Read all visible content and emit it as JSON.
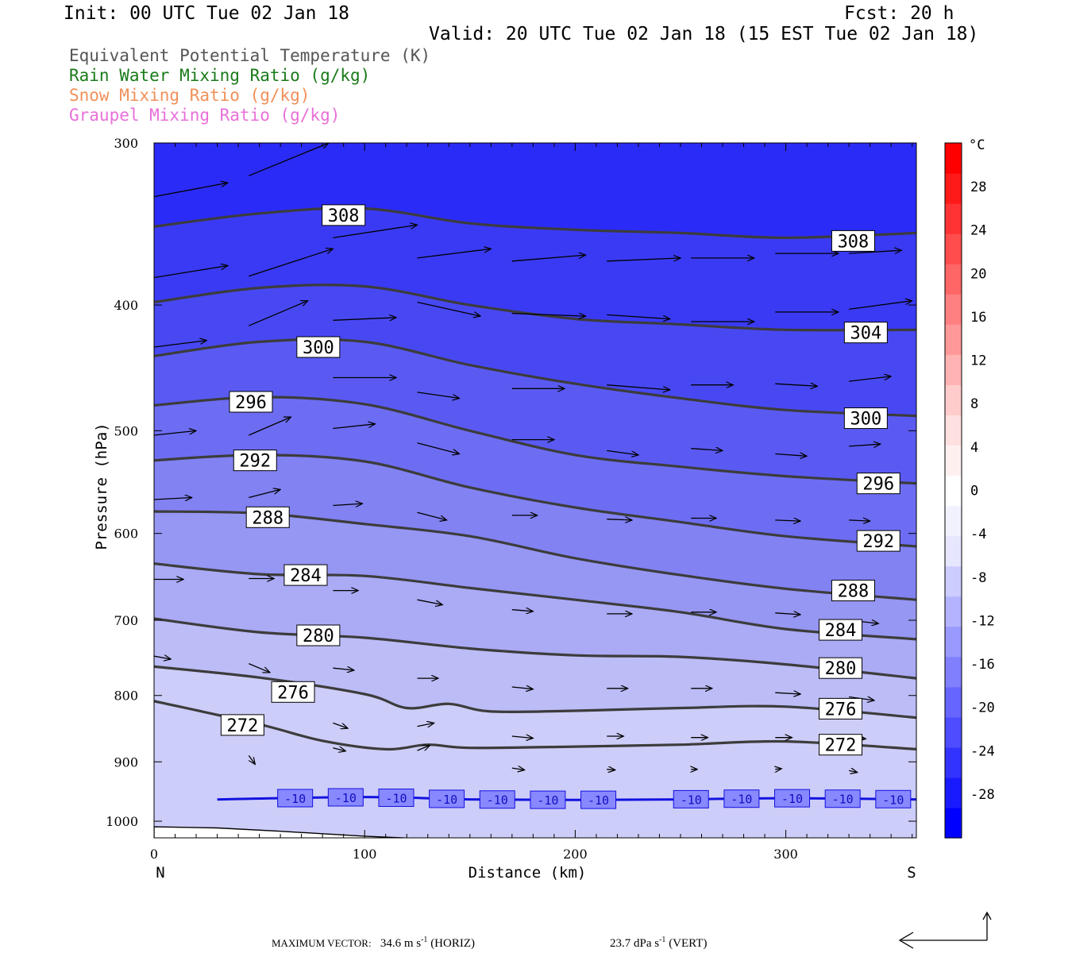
{
  "header": {
    "init": "Init: 00 UTC Tue 02 Jan 18",
    "fcst": "Fcst:  20 h",
    "valid": "Valid: 20 UTC Tue 02 Jan 18 (15 EST Tue 02 Jan 18)"
  },
  "legend": [
    {
      "label": "Equivalent Potential Temperature (K)",
      "color": "#555555"
    },
    {
      "label": "Rain Water Mixing Ratio (g/kg)",
      "color": "#1a7a1a"
    },
    {
      "label": "Snow Mixing Ratio (g/kg)",
      "color": "#f0905a"
    },
    {
      "label": "Graupel Mixing Ratio (g/kg)",
      "color": "#e870d8"
    }
  ],
  "chart_data": {
    "type": "cross-section",
    "xlabel": "Distance (km)",
    "ylabel": "Pressure (hPa)",
    "xlim": [
      0,
      362
    ],
    "ylim": [
      1030,
      300
    ],
    "y_scale": "log-pressure",
    "x_ticks": [
      0,
      100,
      200,
      300
    ],
    "y_ticks": [
      300,
      400,
      500,
      600,
      700,
      800,
      900,
      1000
    ],
    "end_labels": {
      "left": "N",
      "right": "S"
    },
    "theta_e_contours": [
      {
        "level": 308,
        "points": [
          [
            0,
            348
          ],
          [
            50,
            340
          ],
          [
            100,
            337
          ],
          [
            150,
            346
          ],
          [
            200,
            350
          ],
          [
            250,
            352
          ],
          [
            300,
            355
          ],
          [
            362,
            352
          ]
        ],
        "labels": [
          [
            90,
            341
          ],
          [
            332,
            357
          ]
        ]
      },
      {
        "level": 304,
        "points": [
          [
            0,
            398
          ],
          [
            50,
            388
          ],
          [
            100,
            387
          ],
          [
            150,
            400
          ],
          [
            200,
            410
          ],
          [
            250,
            414
          ],
          [
            300,
            418
          ],
          [
            362,
            418
          ]
        ],
        "labels": [
          [
            338,
            420
          ]
        ]
      },
      {
        "level": 300,
        "points": [
          [
            0,
            438
          ],
          [
            50,
            427
          ],
          [
            100,
            427
          ],
          [
            150,
            445
          ],
          [
            200,
            460
          ],
          [
            250,
            472
          ],
          [
            300,
            482
          ],
          [
            362,
            487
          ]
        ],
        "labels": [
          [
            78,
            431
          ],
          [
            338,
            489
          ]
        ]
      },
      {
        "level": 296,
        "points": [
          [
            0,
            478
          ],
          [
            50,
            471
          ],
          [
            100,
            477
          ],
          [
            150,
            500
          ],
          [
            200,
            522
          ],
          [
            250,
            533
          ],
          [
            300,
            542
          ],
          [
            362,
            549
          ]
        ],
        "labels": [
          [
            46,
            475
          ],
          [
            344,
            549
          ]
        ]
      },
      {
        "level": 292,
        "points": [
          [
            0,
            527
          ],
          [
            50,
            522
          ],
          [
            100,
            528
          ],
          [
            150,
            553
          ],
          [
            200,
            573
          ],
          [
            250,
            588
          ],
          [
            300,
            603
          ],
          [
            362,
            614
          ]
        ],
        "labels": [
          [
            48,
            527
          ],
          [
            344,
            608
          ]
        ]
      },
      {
        "level": 288,
        "points": [
          [
            0,
            577
          ],
          [
            50,
            579
          ],
          [
            100,
            590
          ],
          [
            150,
            603
          ],
          [
            200,
            627
          ],
          [
            250,
            646
          ],
          [
            300,
            662
          ],
          [
            362,
            675
          ]
        ],
        "labels": [
          [
            54,
            583
          ],
          [
            332,
            664
          ]
        ]
      },
      {
        "level": 284,
        "points": [
          [
            0,
            633
          ],
          [
            50,
            645
          ],
          [
            100,
            647
          ],
          [
            150,
            661
          ],
          [
            200,
            675
          ],
          [
            250,
            690
          ],
          [
            300,
            711
          ],
          [
            362,
            724
          ]
        ],
        "labels": [
          [
            72,
            646
          ],
          [
            326,
            712
          ]
        ]
      },
      {
        "level": 280,
        "points": [
          [
            0,
            698
          ],
          [
            50,
            715
          ],
          [
            100,
            722
          ],
          [
            150,
            736
          ],
          [
            200,
            745
          ],
          [
            250,
            747
          ],
          [
            300,
            757
          ],
          [
            362,
            776
          ]
        ],
        "labels": [
          [
            78,
            719
          ],
          [
            326,
            762
          ]
        ]
      },
      {
        "level": 276,
        "points": [
          [
            0,
            760
          ],
          [
            50,
            775
          ],
          [
            100,
            798
          ],
          [
            120,
            818
          ],
          [
            140,
            812
          ],
          [
            160,
            823
          ],
          [
            200,
            822
          ],
          [
            250,
            818
          ],
          [
            300,
            816
          ],
          [
            362,
            832
          ]
        ],
        "labels": [
          [
            66,
            795
          ],
          [
            326,
            819
          ]
        ]
      },
      {
        "level": 272,
        "points": [
          [
            0,
            808
          ],
          [
            50,
            842
          ],
          [
            80,
            867
          ],
          [
            110,
            880
          ],
          [
            130,
            873
          ],
          [
            150,
            878
          ],
          [
            200,
            876
          ],
          [
            250,
            873
          ],
          [
            300,
            868
          ],
          [
            362,
            880
          ]
        ],
        "labels": [
          [
            42,
            843
          ],
          [
            326,
            873
          ]
        ]
      }
    ],
    "isotherm_minus10": {
      "points": [
        [
          30,
          962
        ],
        [
          100,
          958
        ],
        [
          150,
          962
        ],
        [
          200,
          963
        ],
        [
          250,
          962
        ],
        [
          300,
          960
        ],
        [
          362,
          962
        ]
      ],
      "labels": [
        67,
        91,
        115,
        139,
        163,
        187,
        211,
        255,
        279,
        303,
        327,
        351
      ]
    },
    "temperature_fill": {
      "colors": [
        "#2b2bf7",
        "#3a3af4",
        "#4848f3",
        "#5a5af3",
        "#6d6df3",
        "#8282f3",
        "#9696f3",
        "#aaaaf5",
        "#bcbcf7",
        "#cdcdf9"
      ]
    },
    "colorbar": {
      "unit": "°C",
      "labels": [
        28,
        24,
        20,
        16,
        12,
        8,
        4,
        0,
        -4,
        -8,
        -12,
        -16,
        -20,
        -24,
        -28
      ],
      "colors": [
        "#0000ff",
        "#1a1aff",
        "#3333ff",
        "#4d4dff",
        "#6666ff",
        "#8080ff",
        "#9999ff",
        "#b3b3ff",
        "#ccccff",
        "#e6e6ff",
        "#f2f2ff",
        "#ffffff",
        "#fff0f0",
        "#ffe0e0",
        "#ffcccc",
        "#ffb3b3",
        "#ff9999",
        "#ff8080",
        "#ff6666",
        "#ff4d4d",
        "#ff3333",
        "#ff1a1a",
        "#ff0000"
      ]
    },
    "terrain": [
      [
        0,
        1010
      ],
      [
        30,
        1012
      ],
      [
        60,
        1018
      ],
      [
        100,
        1027
      ],
      [
        130,
        1032
      ],
      [
        150,
        1037
      ],
      [
        165,
        1042
      ],
      [
        190,
        1043
      ],
      [
        220,
        1044
      ],
      [
        300,
        1044
      ],
      [
        362,
        1044
      ]
    ],
    "wind_vectors": [
      [
        0,
        330,
        35,
        -8
      ],
      [
        45,
        318,
        38,
        -18
      ],
      [
        85,
        355,
        40,
        -8
      ],
      [
        125,
        368,
        35,
        -6
      ],
      [
        170,
        370,
        35,
        -4
      ],
      [
        215,
        370,
        35,
        -2
      ],
      [
        255,
        368,
        30,
        0
      ],
      [
        295,
        365,
        30,
        0
      ],
      [
        330,
        365,
        25,
        -2
      ],
      [
        0,
        381,
        35,
        -8
      ],
      [
        45,
        380,
        40,
        -18
      ],
      [
        85,
        411,
        30,
        -2
      ],
      [
        125,
        398,
        30,
        10
      ],
      [
        170,
        406,
        35,
        2
      ],
      [
        215,
        407,
        30,
        3
      ],
      [
        255,
        412,
        30,
        0
      ],
      [
        295,
        405,
        30,
        0
      ],
      [
        330,
        403,
        30,
        -6
      ],
      [
        0,
        431,
        25,
        -5
      ],
      [
        45,
        415,
        28,
        -18
      ],
      [
        85,
        455,
        30,
        0
      ],
      [
        125,
        467,
        20,
        5
      ],
      [
        170,
        464,
        25,
        0
      ],
      [
        215,
        461,
        30,
        4
      ],
      [
        255,
        461,
        20,
        0
      ],
      [
        295,
        460,
        20,
        2
      ],
      [
        330,
        458,
        20,
        -4
      ],
      [
        0,
        504,
        20,
        -4
      ],
      [
        45,
        504,
        20,
        -16
      ],
      [
        85,
        498,
        20,
        -4
      ],
      [
        125,
        511,
        20,
        10
      ],
      [
        170,
        508,
        20,
        0
      ],
      [
        215,
        518,
        15,
        4
      ],
      [
        255,
        516,
        15,
        2
      ],
      [
        295,
        521,
        15,
        2
      ],
      [
        330,
        514,
        15,
        -2
      ],
      [
        0,
        565,
        18,
        -2
      ],
      [
        45,
        563,
        15,
        -8
      ],
      [
        85,
        571,
        14,
        -2
      ],
      [
        125,
        578,
        14,
        8
      ],
      [
        170,
        581,
        12,
        0
      ],
      [
        215,
        585,
        12,
        1
      ],
      [
        255,
        584,
        12,
        0
      ],
      [
        295,
        586,
        12,
        1
      ],
      [
        330,
        586,
        10,
        1
      ],
      [
        0,
        651,
        14,
        0
      ],
      [
        45,
        650,
        12,
        0
      ],
      [
        85,
        664,
        12,
        0
      ],
      [
        125,
        675,
        12,
        6
      ],
      [
        170,
        687,
        10,
        2
      ],
      [
        215,
        692,
        12,
        0
      ],
      [
        255,
        690,
        12,
        0
      ],
      [
        295,
        691,
        12,
        2
      ],
      [
        330,
        700,
        14,
        4
      ],
      [
        0,
        746,
        8,
        4
      ],
      [
        45,
        756,
        10,
        12
      ],
      [
        85,
        762,
        10,
        3
      ],
      [
        125,
        776,
        10,
        0
      ],
      [
        170,
        788,
        10,
        3
      ],
      [
        215,
        790,
        10,
        0
      ],
      [
        255,
        790,
        10,
        0
      ],
      [
        295,
        796,
        12,
        2
      ],
      [
        330,
        802,
        12,
        5
      ],
      [
        45,
        832,
        6,
        22
      ],
      [
        85,
        840,
        7,
        8
      ],
      [
        125,
        845,
        8,
        -5
      ],
      [
        170,
        860,
        10,
        3
      ],
      [
        215,
        860,
        8,
        0
      ],
      [
        255,
        862,
        8,
        0
      ],
      [
        295,
        862,
        8,
        0
      ],
      [
        330,
        862,
        8,
        2
      ],
      [
        45,
        890,
        3,
        14
      ],
      [
        85,
        878,
        6,
        5
      ],
      [
        125,
        882,
        6,
        -8
      ],
      [
        170,
        910,
        6,
        3
      ],
      [
        215,
        912,
        4,
        1
      ],
      [
        255,
        912,
        3,
        0
      ],
      [
        295,
        912,
        3,
        -1
      ],
      [
        330,
        914,
        4,
        3
      ]
    ],
    "max_vector": {
      "horiz": "34.6",
      "vert": "23.7"
    }
  },
  "footer": {
    "label": "MAXIMUM VECTOR:",
    "horiz_value": "34.6",
    "horiz_unit": "m s",
    "horiz_exp": "-1",
    "horiz_tag": "(HORIZ)",
    "vert_value": "23.7",
    "vert_unit": "dPa s",
    "vert_exp": "-1",
    "vert_tag": "(VERT)"
  }
}
